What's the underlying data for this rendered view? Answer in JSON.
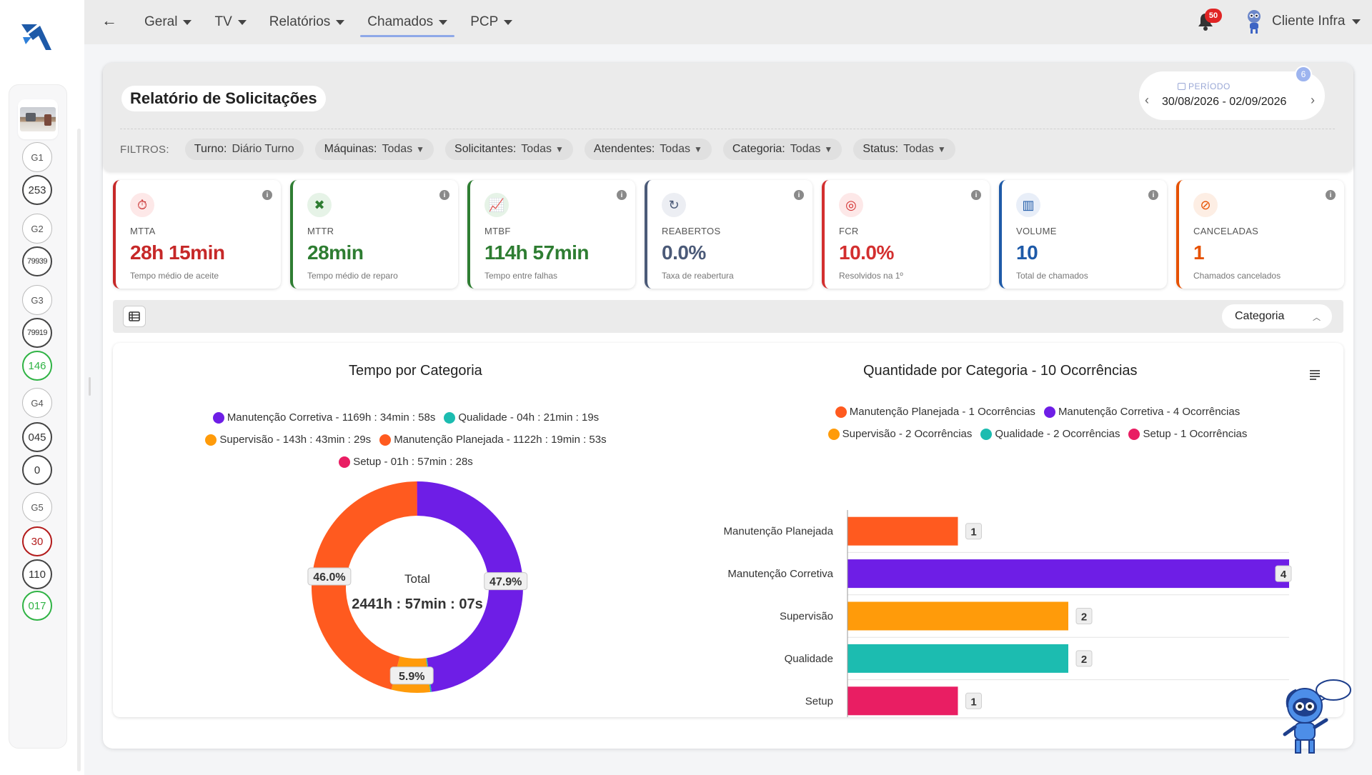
{
  "nav": {
    "items": [
      {
        "label": "Geral"
      },
      {
        "label": "TV"
      },
      {
        "label": "Relatórios"
      },
      {
        "label": "Chamados",
        "active": true
      },
      {
        "label": "PCP"
      }
    ]
  },
  "notifications": {
    "count": "50"
  },
  "user": {
    "name": "Cliente Infra"
  },
  "sidebar": {
    "badges": [
      {
        "text": "G1",
        "style": "g"
      },
      {
        "text": "253",
        "style": "dark"
      },
      {
        "text": "G2",
        "style": "g"
      },
      {
        "text": "79939",
        "style": "dark"
      },
      {
        "text": "G3",
        "style": "g"
      },
      {
        "text": "79919",
        "style": "dark"
      },
      {
        "text": "146",
        "style": "green"
      },
      {
        "text": "G4",
        "style": "g"
      },
      {
        "text": "045",
        "style": "dark"
      },
      {
        "text": "0",
        "style": "dark"
      },
      {
        "text": "G5",
        "style": "g"
      },
      {
        "text": "30",
        "style": "red"
      },
      {
        "text": "110",
        "style": "dark"
      },
      {
        "text": "017",
        "style": "green"
      }
    ]
  },
  "page": {
    "title": "Relatório de Solicitações"
  },
  "period": {
    "label": "PERÍODO",
    "value": "30/08/2026 - 02/09/2026",
    "count": "6"
  },
  "filters": {
    "label": "FILTROS:",
    "chips": [
      {
        "key": "Turno:",
        "value": "Diário Turno",
        "dropdown": false
      },
      {
        "key": "Máquinas:",
        "value": "Todas",
        "dropdown": true
      },
      {
        "key": "Solicitantes:",
        "value": "Todas",
        "dropdown": true
      },
      {
        "key": "Atendentes:",
        "value": "Todas",
        "dropdown": true
      },
      {
        "key": "Categoria:",
        "value": "Todas",
        "dropdown": true
      },
      {
        "key": "Status:",
        "value": "Todas",
        "dropdown": true
      }
    ]
  },
  "kpis": [
    {
      "label": "MTTA",
      "value": "28h 15min",
      "sub": "Tempo médio de aceite",
      "color": "#c62828",
      "icon": "stopwatch-icon",
      "glyph": "⏱"
    },
    {
      "label": "MTTR",
      "value": "28min",
      "sub": "Tempo médio de reparo",
      "color": "#2e7d32",
      "icon": "tools-icon",
      "glyph": "✖"
    },
    {
      "label": "MTBF",
      "value": "114h 57min",
      "sub": "Tempo entre falhas",
      "color": "#2e7d32",
      "icon": "trend-chart-icon",
      "glyph": "📈"
    },
    {
      "label": "REABERTOS",
      "value": "0.0%",
      "sub": "Taxa de reabertura",
      "color": "#4b5a78",
      "icon": "refresh-icon",
      "glyph": "↻"
    },
    {
      "label": "FCR",
      "value": "10.0%",
      "sub": "Resolvidos na 1º",
      "color": "#d32f2f",
      "icon": "target-icon",
      "glyph": "◎"
    },
    {
      "label": "VOLUME",
      "value": "10",
      "sub": "Total de chamados",
      "color": "#1e5aa8",
      "icon": "bar-chart-icon",
      "glyph": "▥"
    },
    {
      "label": "CANCELADAS",
      "value": "1",
      "sub": "Chamados cancelados",
      "color": "#e65100",
      "icon": "cancel-icon",
      "glyph": "⊘"
    }
  ],
  "toolbar": {
    "group_by": "Categoria"
  },
  "chart_data": [
    {
      "type": "pie",
      "title": "Tempo por Categoria",
      "center_label": "Total",
      "center_value": "2441h : 57min : 07s",
      "legend": [
        {
          "name": "Manutenção Corretiva - 1169h : 34min : 58s",
          "color": "#6e1ee6"
        },
        {
          "name": "Qualidade - 04h : 21min : 19s",
          "color": "#1cbcb0"
        },
        {
          "name": "Supervisão - 143h : 43min : 29s",
          "color": "#ff9b0a"
        },
        {
          "name": "Manutenção Planejada - 1122h : 19min : 53s",
          "color": "#ff5a1f"
        },
        {
          "name": "Setup - 01h : 57min : 28s",
          "color": "#e91e63"
        }
      ],
      "slices": [
        {
          "name": "Manutenção Corretiva",
          "value": 47.9,
          "label": "47.9%",
          "color": "#6e1ee6"
        },
        {
          "name": "Qualidade",
          "value": 0.2,
          "label": "",
          "color": "#1cbcb0"
        },
        {
          "name": "Supervisão",
          "value": 5.9,
          "label": "5.9%",
          "color": "#ff9b0a"
        },
        {
          "name": "Manutenção Planejada",
          "value": 46.0,
          "label": "46.0%",
          "color": "#ff5a1f"
        },
        {
          "name": "Setup",
          "value": 0.1,
          "label": "",
          "color": "#e91e63"
        }
      ]
    },
    {
      "type": "bar",
      "orientation": "horizontal",
      "title": "Quantidade por Categoria - 10 Ocorrências",
      "legend": [
        {
          "name": "Manutenção Planejada - 1 Ocorrências",
          "color": "#ff5a1f"
        },
        {
          "name": "Manutenção Corretiva - 4 Ocorrências",
          "color": "#6e1ee6"
        },
        {
          "name": "Supervisão - 2 Ocorrências",
          "color": "#ff9b0a"
        },
        {
          "name": "Qualidade - 2 Ocorrências",
          "color": "#1cbcb0"
        },
        {
          "name": "Setup - 1 Ocorrências",
          "color": "#e91e63"
        }
      ],
      "categories": [
        "Manutenção Planejada",
        "Manutenção Corretiva",
        "Supervisão",
        "Qualidade",
        "Setup"
      ],
      "values": [
        1,
        4,
        2,
        2,
        1
      ],
      "colors": [
        "#ff5a1f",
        "#6e1ee6",
        "#ff9b0a",
        "#1cbcb0",
        "#e91e63"
      ],
      "xlim": [
        0,
        4
      ],
      "xticks": [
        0,
        1,
        2,
        3
      ]
    }
  ]
}
